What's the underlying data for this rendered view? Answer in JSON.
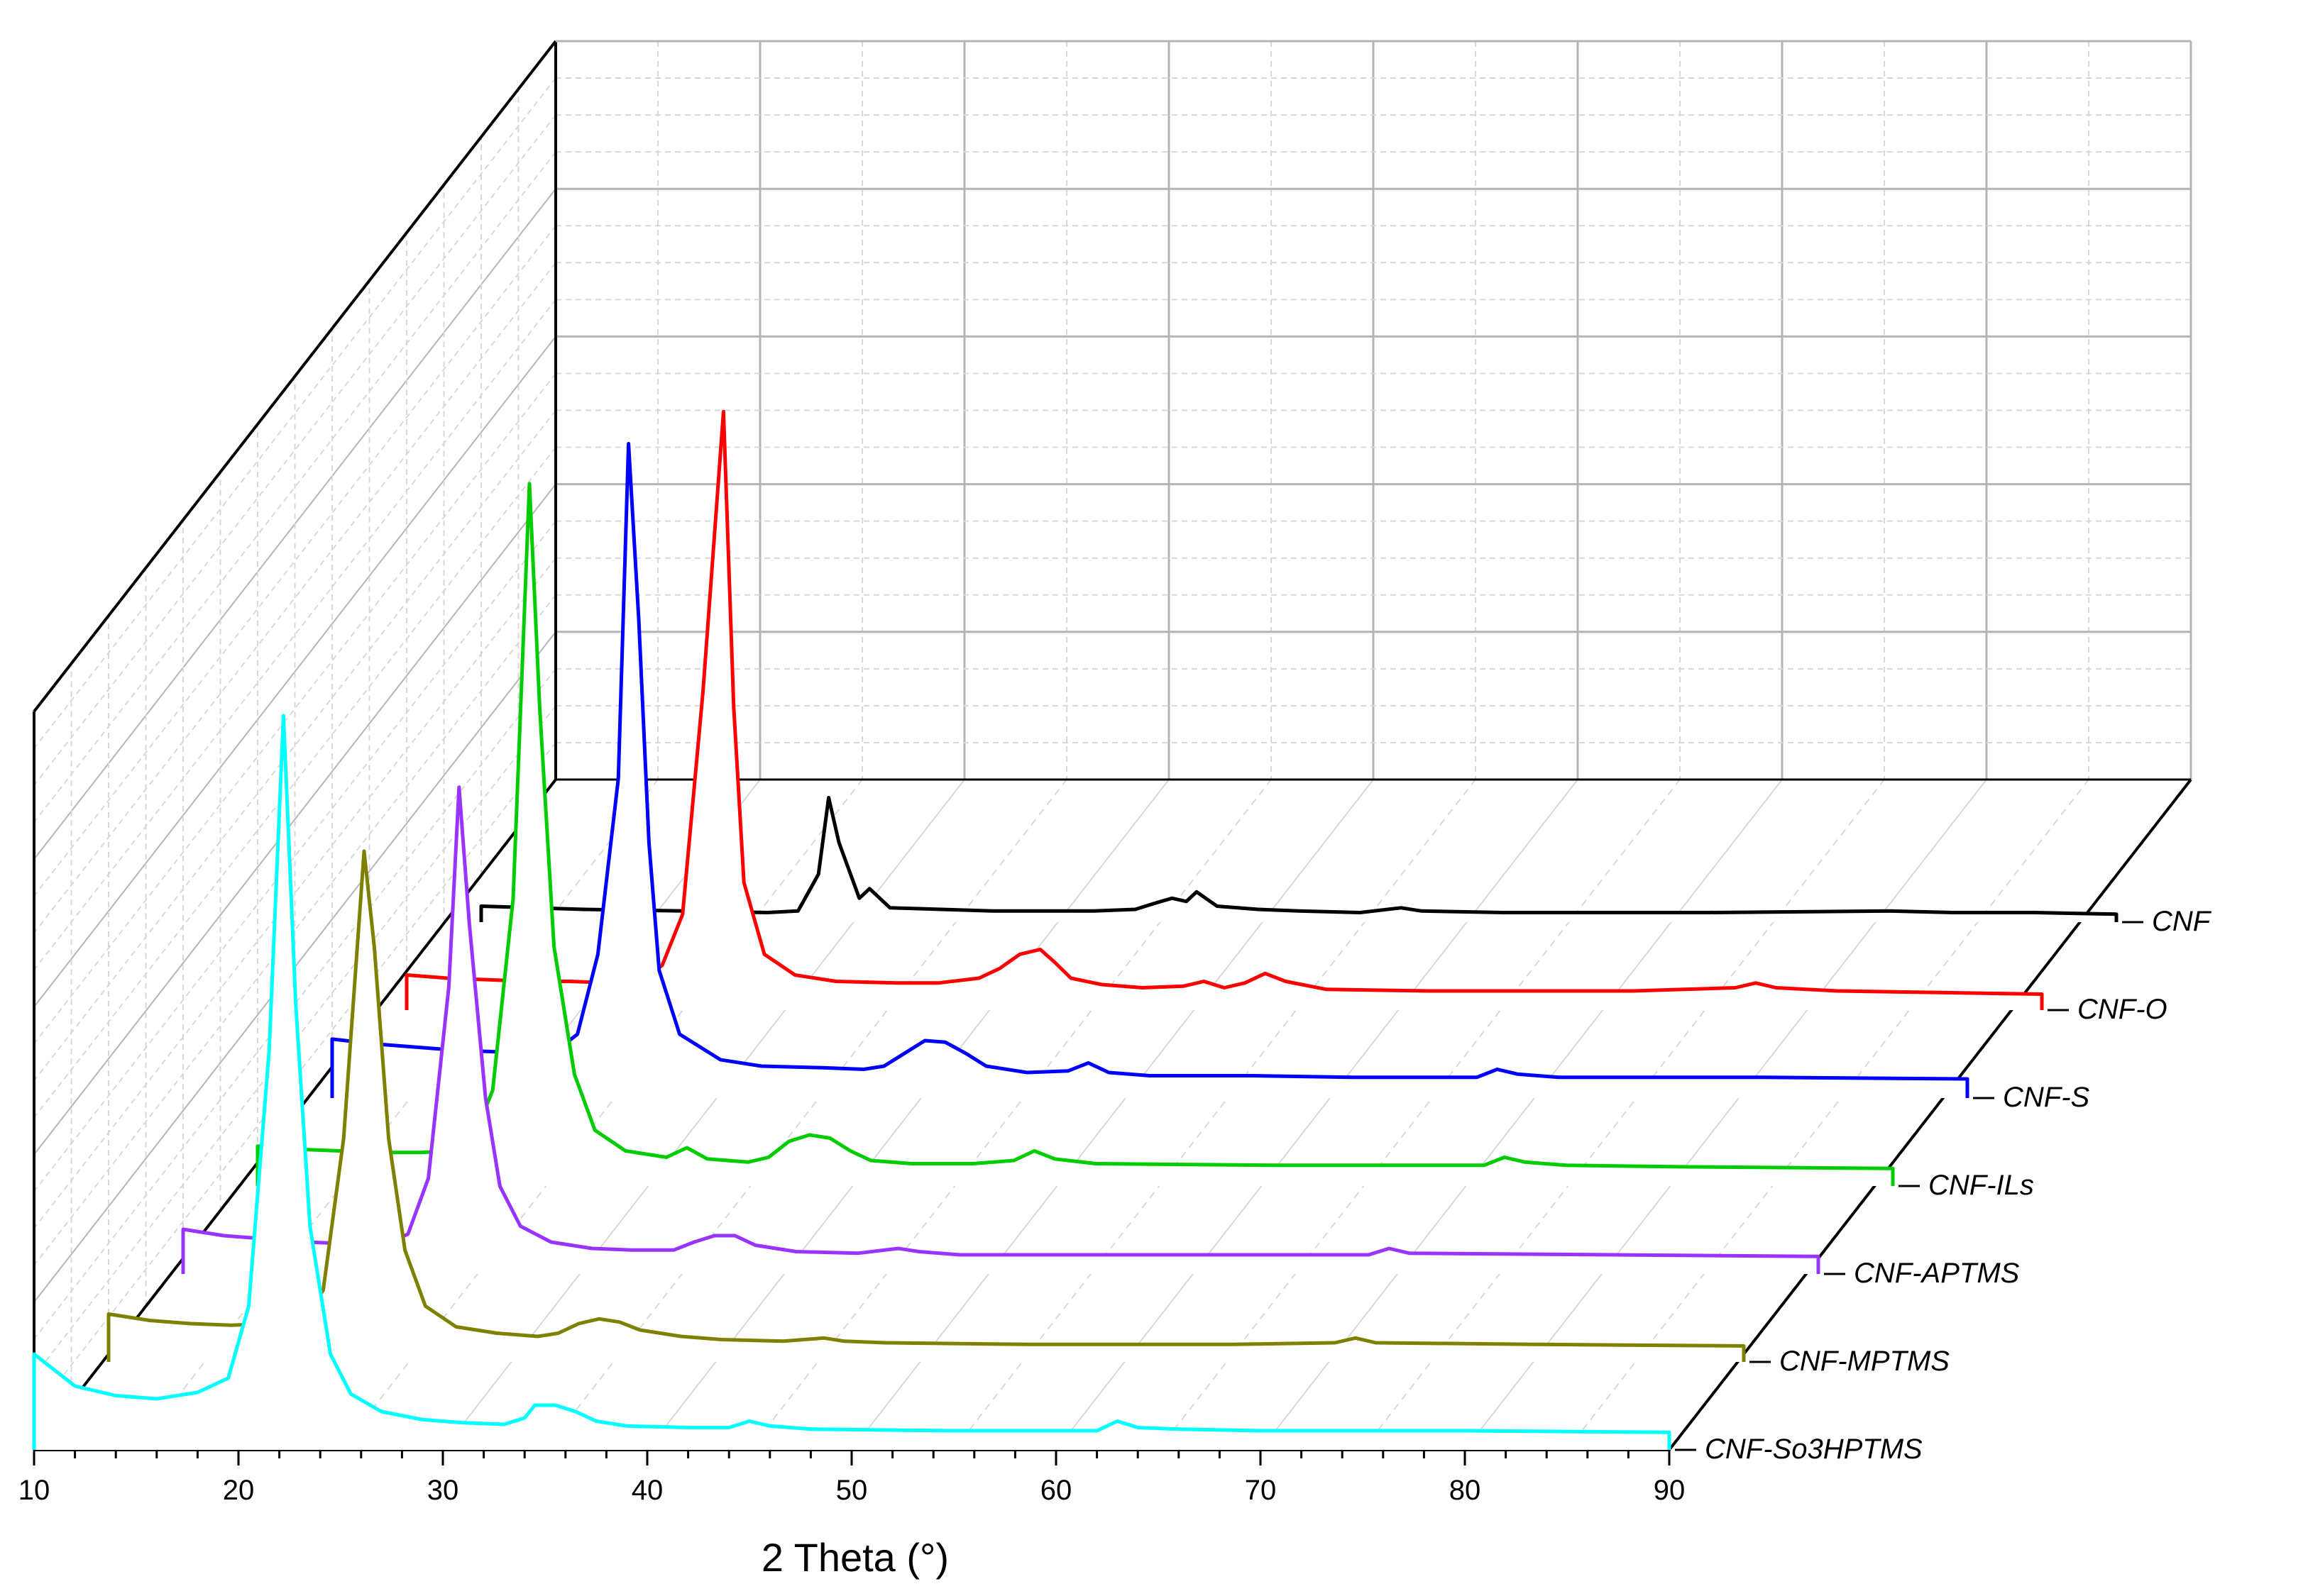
{
  "chart_data": {
    "type": "line",
    "style": "3d-waterfall",
    "xlabel": "2 Theta (°)",
    "ylabel": "",
    "title": "",
    "xlim": [
      10,
      90
    ],
    "x_ticks": [
      "10",
      "20",
      "30",
      "40",
      "50",
      "60",
      "70",
      "80",
      "90"
    ],
    "grid": true,
    "legend": "series labels along right depth axis",
    "series": [
      {
        "name": "CNF",
        "color": "#000000",
        "points": [
          [
            10,
            10
          ],
          [
            15,
            8
          ],
          [
            20,
            7
          ],
          [
            24,
            6
          ],
          [
            25.5,
            7
          ],
          [
            26.5,
            30
          ],
          [
            27,
            78
          ],
          [
            27.5,
            50
          ],
          [
            28.5,
            15
          ],
          [
            29,
            21
          ],
          [
            30,
            9
          ],
          [
            35,
            7
          ],
          [
            40,
            7
          ],
          [
            42,
            8
          ],
          [
            43,
            12
          ],
          [
            43.8,
            15
          ],
          [
            44.5,
            13
          ],
          [
            45,
            19
          ],
          [
            46,
            10
          ],
          [
            48,
            8
          ],
          [
            50,
            7
          ],
          [
            53,
            6
          ],
          [
            55,
            9
          ],
          [
            56,
            7
          ],
          [
            60,
            6
          ],
          [
            70,
            6
          ],
          [
            79,
            7
          ],
          [
            82,
            6
          ],
          [
            86,
            6
          ],
          [
            90,
            5
          ]
        ]
      },
      {
        "name": "CNF-O",
        "color": "#ff0000",
        "points": [
          [
            10,
            22
          ],
          [
            12,
            20
          ],
          [
            14,
            19
          ],
          [
            16,
            18
          ],
          [
            18,
            18
          ],
          [
            20,
            17
          ],
          [
            21.5,
            19
          ],
          [
            22.5,
            28
          ],
          [
            23.5,
            60
          ],
          [
            24.5,
            200
          ],
          [
            25.5,
            375
          ],
          [
            26,
            190
          ],
          [
            26.5,
            80
          ],
          [
            27.5,
            35
          ],
          [
            29,
            22
          ],
          [
            31,
            18
          ],
          [
            34,
            17
          ],
          [
            36,
            17
          ],
          [
            38,
            20
          ],
          [
            39,
            26
          ],
          [
            40,
            35
          ],
          [
            41,
            38
          ],
          [
            41.7,
            30
          ],
          [
            42.5,
            20
          ],
          [
            44,
            16
          ],
          [
            46,
            14
          ],
          [
            48,
            15
          ],
          [
            49,
            18
          ],
          [
            50,
            14
          ],
          [
            51,
            17
          ],
          [
            52,
            23
          ],
          [
            53,
            18
          ],
          [
            55,
            13
          ],
          [
            60,
            12
          ],
          [
            70,
            12
          ],
          [
            75,
            14
          ],
          [
            76,
            17
          ],
          [
            77,
            14
          ],
          [
            80,
            12
          ],
          [
            85,
            11
          ],
          [
            90,
            10
          ]
        ]
      },
      {
        "name": "CNF-S",
        "color": "#0000ff",
        "points": [
          [
            10,
            37
          ],
          [
            12,
            34
          ],
          [
            14,
            32
          ],
          [
            16,
            30
          ],
          [
            18,
            29
          ],
          [
            20,
            28
          ],
          [
            21,
            30
          ],
          [
            22,
            40
          ],
          [
            23,
            90
          ],
          [
            24,
            200
          ],
          [
            24.5,
            410
          ],
          [
            25,
            300
          ],
          [
            25.5,
            160
          ],
          [
            26,
            80
          ],
          [
            27,
            40
          ],
          [
            29,
            24
          ],
          [
            31,
            20
          ],
          [
            34,
            19
          ],
          [
            36,
            18
          ],
          [
            37,
            20
          ],
          [
            38,
            28
          ],
          [
            39,
            36
          ],
          [
            40,
            35
          ],
          [
            41,
            28
          ],
          [
            42,
            20
          ],
          [
            44,
            16
          ],
          [
            46,
            17
          ],
          [
            47,
            22
          ],
          [
            48,
            16
          ],
          [
            50,
            14
          ],
          [
            55,
            14
          ],
          [
            60,
            13
          ],
          [
            66,
            13
          ],
          [
            67,
            18
          ],
          [
            68,
            15
          ],
          [
            70,
            13
          ],
          [
            80,
            13
          ],
          [
            90,
            12
          ]
        ]
      },
      {
        "name": "CNF-ILs",
        "color": "#00cc00",
        "points": [
          [
            10,
            25
          ],
          [
            12,
            23
          ],
          [
            14,
            22
          ],
          [
            16,
            21
          ],
          [
            18,
            21
          ],
          [
            19.5,
            22
          ],
          [
            20.5,
            28
          ],
          [
            21.5,
            60
          ],
          [
            22.5,
            180
          ],
          [
            23.3,
            440
          ],
          [
            23.8,
            300
          ],
          [
            24.5,
            150
          ],
          [
            25.5,
            70
          ],
          [
            26.5,
            35
          ],
          [
            28,
            22
          ],
          [
            30,
            18
          ],
          [
            31,
            24
          ],
          [
            32,
            17
          ],
          [
            34,
            15
          ],
          [
            35,
            18
          ],
          [
            36,
            28
          ],
          [
            37,
            32
          ],
          [
            38,
            30
          ],
          [
            39,
            22
          ],
          [
            40,
            16
          ],
          [
            42,
            14
          ],
          [
            45,
            14
          ],
          [
            47,
            16
          ],
          [
            48,
            22
          ],
          [
            49,
            17
          ],
          [
            51,
            14
          ],
          [
            60,
            13
          ],
          [
            70,
            13
          ],
          [
            71,
            18
          ],
          [
            72,
            15
          ],
          [
            74,
            13
          ],
          [
            80,
            12
          ],
          [
            90,
            11
          ]
        ]
      },
      {
        "name": "CNF-APTMS",
        "color": "#9933ff",
        "points": [
          [
            10,
            28
          ],
          [
            12,
            24
          ],
          [
            14,
            22
          ],
          [
            16,
            20
          ],
          [
            18,
            19
          ],
          [
            20,
            19
          ],
          [
            21,
            25
          ],
          [
            22,
            60
          ],
          [
            23,
            180
          ],
          [
            23.5,
            305
          ],
          [
            24,
            220
          ],
          [
            24.8,
            110
          ],
          [
            25.5,
            55
          ],
          [
            26.5,
            30
          ],
          [
            28,
            20
          ],
          [
            30,
            16
          ],
          [
            32,
            15
          ],
          [
            34,
            15
          ],
          [
            35,
            20
          ],
          [
            36,
            24
          ],
          [
            37,
            24
          ],
          [
            38,
            18
          ],
          [
            40,
            14
          ],
          [
            43,
            13
          ],
          [
            45,
            16
          ],
          [
            46,
            14
          ],
          [
            48,
            12
          ],
          [
            55,
            12
          ],
          [
            60,
            12
          ],
          [
            68,
            12
          ],
          [
            69,
            16
          ],
          [
            70,
            13
          ],
          [
            80,
            12
          ],
          [
            90,
            11
          ]
        ]
      },
      {
        "name": "CNF-MPTMS",
        "color": "#808000",
        "points": [
          [
            10,
            30
          ],
          [
            12,
            26
          ],
          [
            14,
            24
          ],
          [
            16,
            23
          ],
          [
            18,
            24
          ],
          [
            19.5,
            26
          ],
          [
            20.5,
            45
          ],
          [
            21.5,
            140
          ],
          [
            22.5,
            320
          ],
          [
            23,
            260
          ],
          [
            23.7,
            140
          ],
          [
            24.5,
            70
          ],
          [
            25.5,
            35
          ],
          [
            27,
            22
          ],
          [
            29,
            18
          ],
          [
            31,
            16
          ],
          [
            32,
            18
          ],
          [
            33,
            24
          ],
          [
            34,
            27
          ],
          [
            35,
            25
          ],
          [
            36,
            20
          ],
          [
            38,
            16
          ],
          [
            40,
            14
          ],
          [
            43,
            13
          ],
          [
            45,
            15
          ],
          [
            46,
            13
          ],
          [
            48,
            12
          ],
          [
            55,
            11
          ],
          [
            65,
            11
          ],
          [
            70,
            12
          ],
          [
            71,
            15
          ],
          [
            72,
            12
          ],
          [
            80,
            11
          ],
          [
            90,
            10
          ]
        ]
      },
      {
        "name": "CNF-So3HPTMS",
        "color": "#00ffff",
        "points": [
          [
            10,
            60
          ],
          [
            11,
            50
          ],
          [
            12,
            40
          ],
          [
            14,
            34
          ],
          [
            16,
            32
          ],
          [
            18,
            36
          ],
          [
            19.5,
            45
          ],
          [
            20.5,
            90
          ],
          [
            21.5,
            250
          ],
          [
            22.2,
            460
          ],
          [
            22.8,
            280
          ],
          [
            23.5,
            140
          ],
          [
            24.5,
            60
          ],
          [
            25.5,
            35
          ],
          [
            27,
            24
          ],
          [
            29,
            19
          ],
          [
            31,
            17
          ],
          [
            33,
            16
          ],
          [
            34,
            20
          ],
          [
            34.5,
            28
          ],
          [
            35.5,
            28
          ],
          [
            36.5,
            24
          ],
          [
            37.5,
            18
          ],
          [
            39,
            15
          ],
          [
            42,
            14
          ],
          [
            44,
            14
          ],
          [
            45,
            18
          ],
          [
            46,
            15
          ],
          [
            48,
            13
          ],
          [
            55,
            12
          ],
          [
            62,
            12
          ],
          [
            63,
            18
          ],
          [
            64,
            14
          ],
          [
            66,
            13
          ],
          [
            70,
            12
          ],
          [
            80,
            12
          ],
          [
            90,
            11
          ]
        ]
      }
    ]
  }
}
